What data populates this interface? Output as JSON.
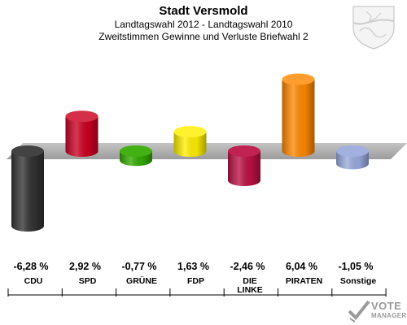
{
  "header": {
    "title": "Stadt Versmold",
    "subtitle": "Landtagswahl 2012 - Landtagswahl 2010",
    "caption": "Zweitstimmen Gewinne und Verluste Briefwahl 2"
  },
  "chart_data": {
    "type": "bar",
    "title": "Stadt Versmold",
    "subtitle": "Landtagswahl 2012 - Landtagswahl 2010",
    "caption": "Zweitstimmen Gewinne und Verluste Briefwahl 2",
    "categories": [
      "CDU",
      "SPD",
      "GRÜNE",
      "FDP",
      "DIE LINKE",
      "PIRATEN",
      "Sonstige"
    ],
    "category_lines": [
      [
        "CDU"
      ],
      [
        "SPD"
      ],
      [
        "GRÜNE"
      ],
      [
        "FDP"
      ],
      [
        "DIE",
        "LINKE"
      ],
      [
        "PIRATEN"
      ],
      [
        "Sonstige"
      ]
    ],
    "values": [
      -6.28,
      2.92,
      -0.77,
      1.63,
      -2.46,
      6.04,
      -1.05
    ],
    "value_labels": [
      "-6,28 %",
      "2,92 %",
      "-0,77 %",
      "1,63 %",
      "-2,46 %",
      "6,04 %",
      "-1,05 %"
    ],
    "colors": [
      "#333333",
      "#cc0022",
      "#33aa00",
      "#ffee00",
      "#bb1144",
      "#ff8800",
      "#99aadd"
    ],
    "ylim": [
      -7,
      7
    ],
    "legend": "none"
  },
  "logo": {
    "line1": "VOTE",
    "line2": "MANAGER"
  }
}
